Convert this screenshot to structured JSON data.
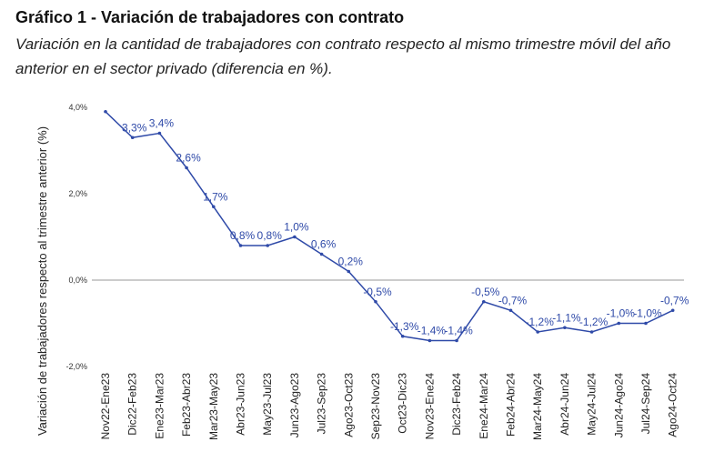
{
  "header": {
    "title": "Gráfico 1 - Variación de trabajadores con contrato",
    "subtitle": "Variación en la cantidad de trabajadores con contrato respecto al mismo trimestre móvil del año anterior en el sector privado (diferencia en %)."
  },
  "chart_data": {
    "type": "line",
    "title": "Gráfico 1 - Variación de trabajadores con contrato",
    "ylabel": "Variación de trabajadores respecto al trimestre anterior (%)",
    "xlabel": "",
    "ylim": [
      -2.0,
      4.0
    ],
    "yticks": [
      4.0,
      2.0,
      0.0,
      -2.0
    ],
    "ytick_labels": [
      "4,0%",
      "2,0%",
      "0,0%",
      "-2,0%"
    ],
    "categories": [
      "Nov22-Ene23",
      "Dic22-Feb23",
      "Ene23-Mar23",
      "Feb23-Abr23",
      "Mar23-May23",
      "Abr23-Jun23",
      "May23-Jul23",
      "Jun23-Ago23",
      "Jul23-Sep23",
      "Ago23-Oct23",
      "Sep23-Nov23",
      "Oct23-Dic23",
      "Nov23-Ene24",
      "Dic23-Feb24",
      "Ene24-Mar24",
      "Feb24-Abr24",
      "Mar24-May24",
      "Abr24-Jun24",
      "May24-Jul24",
      "Jun24-Ago24",
      "Jul24-Sep24",
      "Ago24-Oct24"
    ],
    "values": [
      3.9,
      3.3,
      3.4,
      2.6,
      1.7,
      0.8,
      0.8,
      1.0,
      0.6,
      0.2,
      -0.5,
      -1.3,
      -1.4,
      -1.4,
      -0.5,
      -0.7,
      -1.2,
      -1.1,
      -1.2,
      -1.0,
      -1.0,
      -0.7
    ],
    "data_labels": [
      null,
      "3,3%",
      "3,4%",
      "2,6%",
      "1,7%",
      "0,8%",
      "0,8%",
      "1,0%",
      "0,6%",
      "0,2%",
      "-0,5%",
      "-1,3%",
      "-1,4%",
      "-1,4%",
      "-0,5%",
      "-0,7%",
      "-1,2%",
      "-1,1%",
      "-1,2%",
      "-1,0%",
      "-1,0%",
      "-0,7%"
    ],
    "series_color": "#2f4aa8",
    "axis_color": "#999999",
    "grid": false
  }
}
